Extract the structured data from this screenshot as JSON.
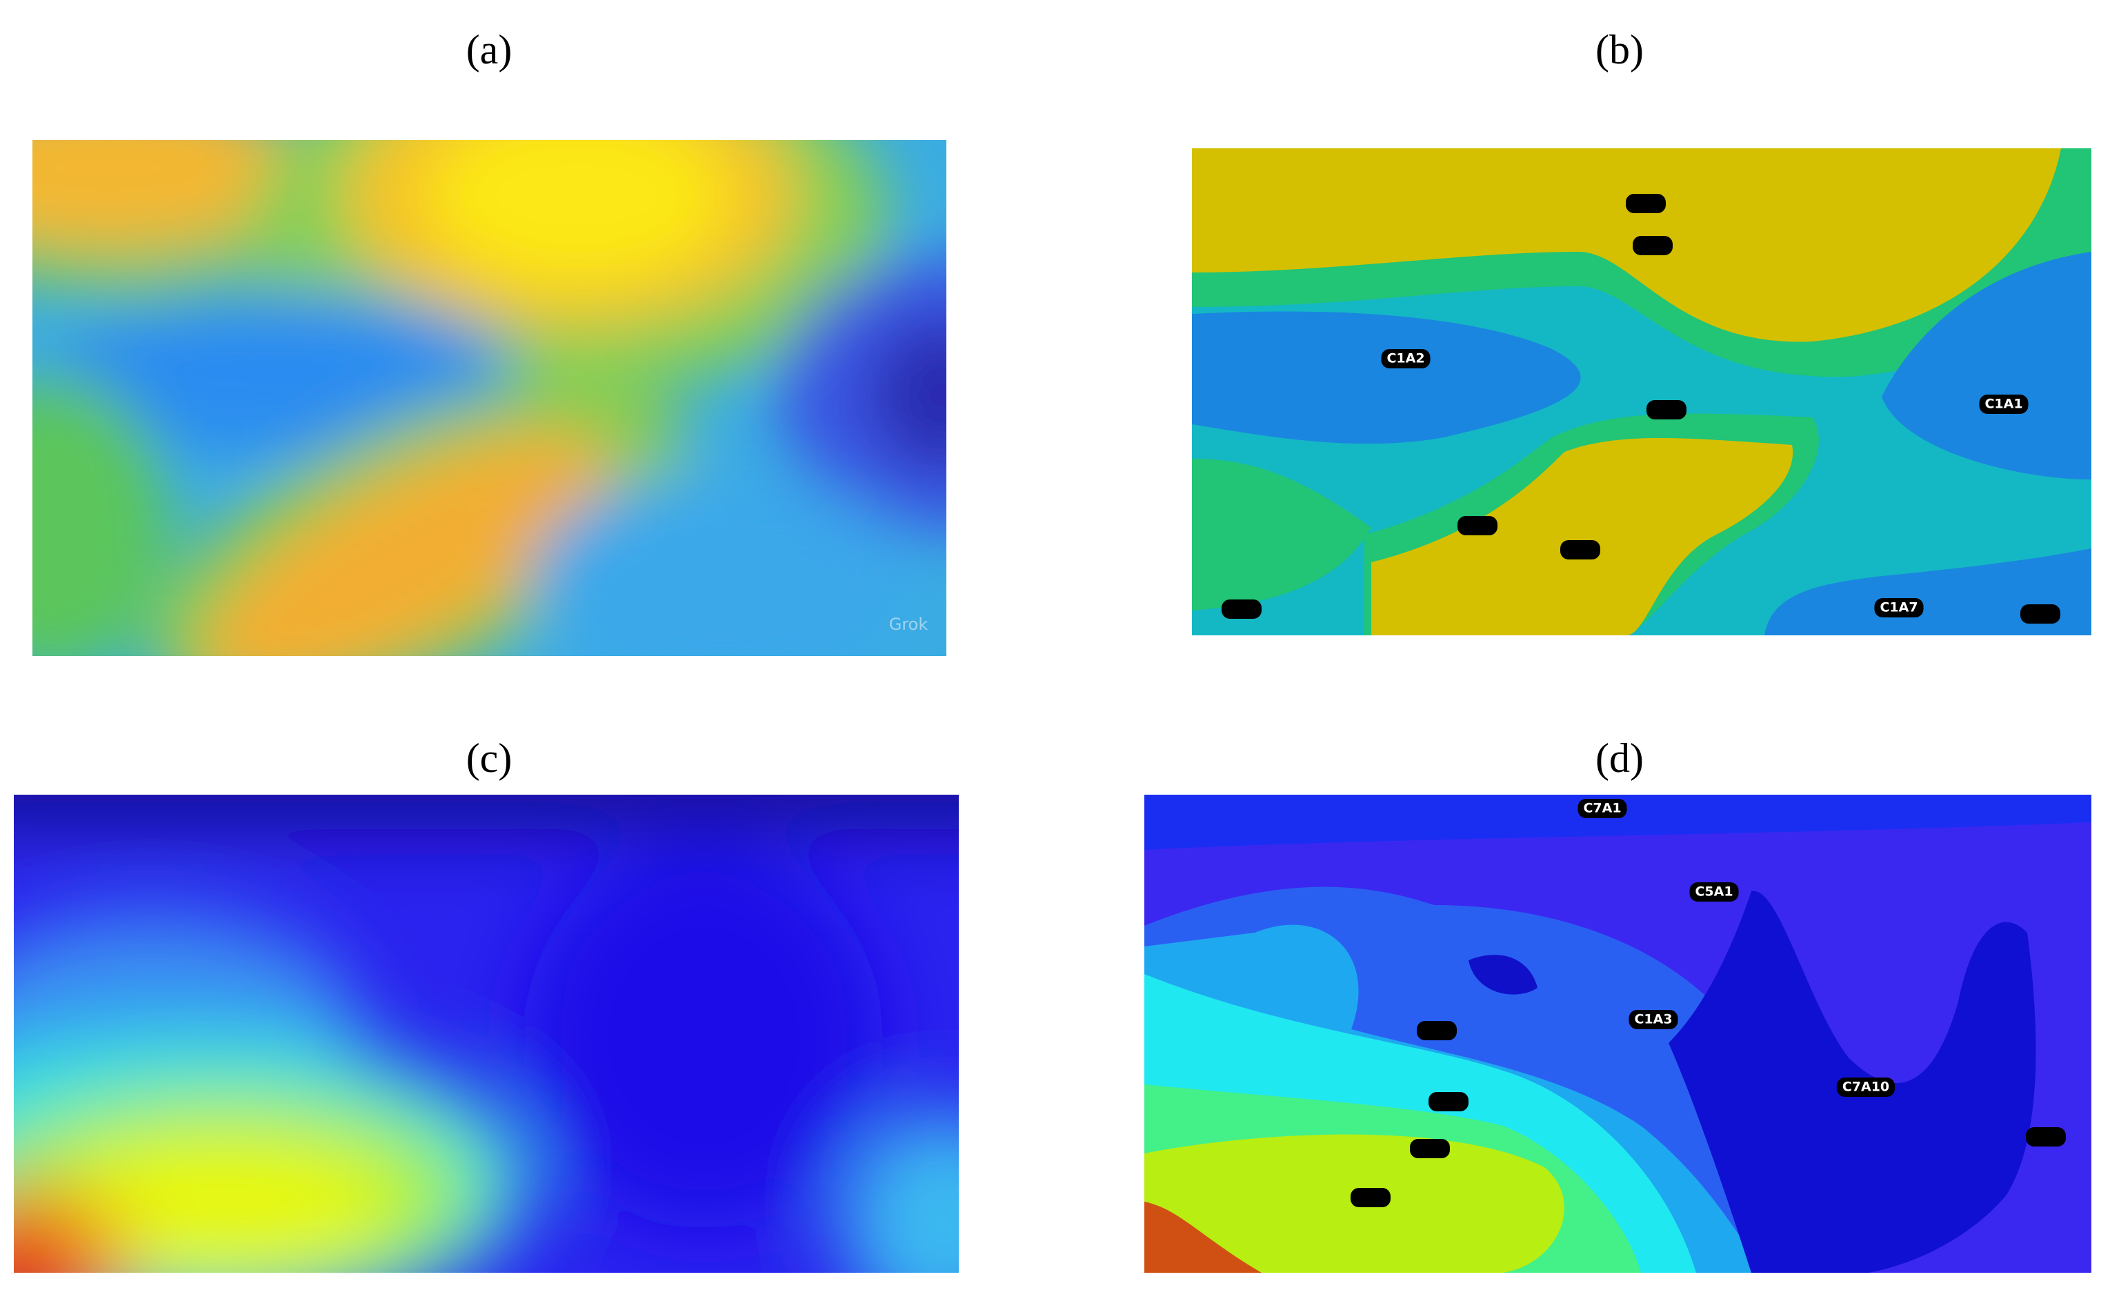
{
  "panels": [
    {
      "label": "(a)",
      "watermark": "Grok"
    },
    {
      "label": "(b)",
      "annotations": [
        "C1A2",
        "C1A1",
        "C1A7"
      ]
    },
    {
      "label": "(c)"
    },
    {
      "label": "(d)",
      "annotations": [
        "C7A1",
        "C5A1",
        "C1A3",
        "C7A10"
      ]
    }
  ]
}
